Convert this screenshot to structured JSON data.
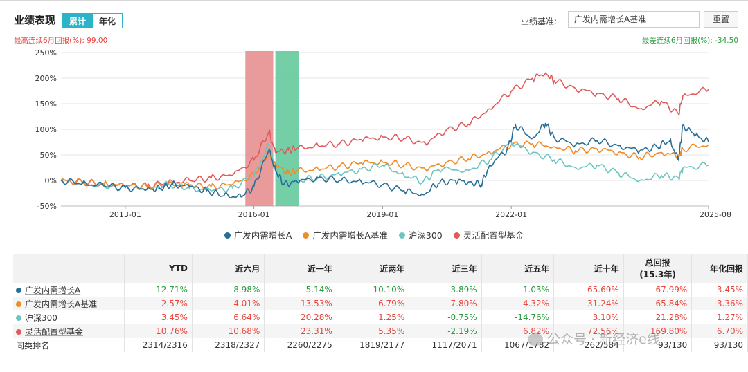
{
  "header": {
    "title": "业绩表现",
    "tabs": [
      {
        "label": "累计",
        "active": true
      },
      {
        "label": "年化",
        "active": false
      }
    ],
    "benchmark_label": "业绩基准:",
    "benchmark_value": "广发内需增长A基准",
    "reset_label": "重置"
  },
  "stats": {
    "max_label": "最高连续6月回报(%): 99.00",
    "min_label": "最差连续6月回报(%): -34.50"
  },
  "colors": {
    "fund": "#2a6e96",
    "benchmark": "#f08c28",
    "csi300": "#6cc5c0",
    "peer": "#e05a5a",
    "max_band": "#e58a8a",
    "min_band": "#5cc796",
    "positive": "#e8453c",
    "negative": "#2a9d3c"
  },
  "chart_data": {
    "type": "line",
    "x_ticks": [
      "2013-01",
      "2016-01",
      "2019-01",
      "2022-01",
      "2025-08"
    ],
    "ylim": [
      -50,
      250
    ],
    "y_ticks": [
      "250%",
      "200%",
      "150%",
      "100%",
      "50%",
      "0%",
      "-50%"
    ],
    "highlight_bands": [
      {
        "name": "max",
        "start": "2014.80",
        "end": "2015.45"
      },
      {
        "name": "min",
        "start": "2015.50",
        "end": "2016.05"
      }
    ],
    "series": [
      {
        "name": "广发内需增长A",
        "points": [
          [
            2010.5,
            0
          ],
          [
            2011.0,
            -6
          ],
          [
            2011.5,
            -10
          ],
          [
            2012.0,
            -14
          ],
          [
            2012.5,
            -18
          ],
          [
            2012.8,
            -16
          ],
          [
            2013.1,
            -8
          ],
          [
            2013.5,
            -12
          ],
          [
            2013.9,
            -20
          ],
          [
            2014.3,
            -30
          ],
          [
            2014.7,
            -32
          ],
          [
            2015.0,
            -12
          ],
          [
            2015.35,
            60
          ],
          [
            2015.5,
            20
          ],
          [
            2015.7,
            -8
          ],
          [
            2016.0,
            -2
          ],
          [
            2016.5,
            5
          ],
          [
            2017.0,
            0
          ],
          [
            2017.5,
            -2
          ],
          [
            2018.0,
            -8
          ],
          [
            2018.5,
            -20
          ],
          [
            2018.95,
            -28
          ],
          [
            2019.3,
            -5
          ],
          [
            2019.7,
            0
          ],
          [
            2020.0,
            -3
          ],
          [
            2020.3,
            -8
          ],
          [
            2020.5,
            30
          ],
          [
            2020.9,
            60
          ],
          [
            2021.1,
            108
          ],
          [
            2021.5,
            82
          ],
          [
            2021.8,
            112
          ],
          [
            2022.0,
            84
          ],
          [
            2022.5,
            70
          ],
          [
            2023.0,
            78
          ],
          [
            2023.5,
            68
          ],
          [
            2024.0,
            58
          ],
          [
            2024.4,
            66
          ],
          [
            2024.7,
            78
          ],
          [
            2024.9,
            40
          ],
          [
            2025.0,
            108
          ],
          [
            2025.3,
            88
          ],
          [
            2025.6,
            75
          ]
        ]
      },
      {
        "name": "广发内需增长A基准",
        "points": [
          [
            2010.5,
            0
          ],
          [
            2011.0,
            -3
          ],
          [
            2011.5,
            -7
          ],
          [
            2012.0,
            -10
          ],
          [
            2012.5,
            -12
          ],
          [
            2013.0,
            -8
          ],
          [
            2013.5,
            -10
          ],
          [
            2014.0,
            -12
          ],
          [
            2014.5,
            -8
          ],
          [
            2015.0,
            10
          ],
          [
            2015.35,
            55
          ],
          [
            2015.5,
            30
          ],
          [
            2015.8,
            15
          ],
          [
            2016.0,
            18
          ],
          [
            2016.5,
            22
          ],
          [
            2017.0,
            28
          ],
          [
            2017.5,
            34
          ],
          [
            2018.0,
            36
          ],
          [
            2018.5,
            30
          ],
          [
            2019.0,
            22
          ],
          [
            2019.5,
            36
          ],
          [
            2020.0,
            42
          ],
          [
            2020.5,
            55
          ],
          [
            2021.0,
            70
          ],
          [
            2021.5,
            72
          ],
          [
            2022.0,
            66
          ],
          [
            2022.5,
            58
          ],
          [
            2023.0,
            62
          ],
          [
            2023.5,
            55
          ],
          [
            2024.0,
            45
          ],
          [
            2024.5,
            55
          ],
          [
            2024.9,
            48
          ],
          [
            2025.0,
            62
          ],
          [
            2025.6,
            70
          ]
        ]
      },
      {
        "name": "沪深300",
        "points": [
          [
            2010.5,
            0
          ],
          [
            2011.0,
            -6
          ],
          [
            2011.5,
            -12
          ],
          [
            2012.0,
            -14
          ],
          [
            2012.5,
            -18
          ],
          [
            2013.0,
            -8
          ],
          [
            2013.5,
            -15
          ],
          [
            2014.0,
            -20
          ],
          [
            2014.5,
            -14
          ],
          [
            2015.0,
            8
          ],
          [
            2015.35,
            70
          ],
          [
            2015.5,
            20
          ],
          [
            2015.8,
            -5
          ],
          [
            2016.0,
            0
          ],
          [
            2016.5,
            5
          ],
          [
            2017.0,
            12
          ],
          [
            2017.5,
            22
          ],
          [
            2018.0,
            30
          ],
          [
            2018.5,
            10
          ],
          [
            2018.95,
            -2
          ],
          [
            2019.3,
            22
          ],
          [
            2020.0,
            20
          ],
          [
            2020.5,
            40
          ],
          [
            2021.0,
            75
          ],
          [
            2021.5,
            55
          ],
          [
            2022.0,
            40
          ],
          [
            2022.5,
            25
          ],
          [
            2023.0,
            30
          ],
          [
            2023.5,
            15
          ],
          [
            2024.0,
            0
          ],
          [
            2024.5,
            10
          ],
          [
            2024.9,
            5
          ],
          [
            2025.0,
            24
          ],
          [
            2025.6,
            30
          ]
        ]
      },
      {
        "name": "灵活配置型基金",
        "points": [
          [
            2010.5,
            0
          ],
          [
            2011.0,
            -4
          ],
          [
            2011.5,
            -8
          ],
          [
            2012.0,
            -10
          ],
          [
            2012.5,
            -10
          ],
          [
            2013.0,
            -5
          ],
          [
            2013.5,
            0
          ],
          [
            2014.0,
            5
          ],
          [
            2014.5,
            10
          ],
          [
            2015.0,
            40
          ],
          [
            2015.35,
            95
          ],
          [
            2015.5,
            55
          ],
          [
            2015.8,
            60
          ],
          [
            2016.0,
            62
          ],
          [
            2016.5,
            68
          ],
          [
            2017.0,
            72
          ],
          [
            2017.5,
            80
          ],
          [
            2018.0,
            85
          ],
          [
            2018.5,
            82
          ],
          [
            2019.0,
            72
          ],
          [
            2019.5,
            100
          ],
          [
            2020.0,
            110
          ],
          [
            2020.5,
            140
          ],
          [
            2021.0,
            175
          ],
          [
            2021.5,
            200
          ],
          [
            2021.8,
            210
          ],
          [
            2022.0,
            195
          ],
          [
            2022.5,
            180
          ],
          [
            2023.0,
            170
          ],
          [
            2023.5,
            160
          ],
          [
            2024.0,
            140
          ],
          [
            2024.5,
            155
          ],
          [
            2024.9,
            130
          ],
          [
            2025.0,
            165
          ],
          [
            2025.6,
            178
          ]
        ]
      }
    ]
  },
  "table": {
    "headers": [
      "",
      "YTD",
      "近六月",
      "近一年",
      "近两年",
      "近三年",
      "近五年",
      "近十年",
      "总回报\n(15.3年)",
      "年化回报"
    ],
    "rows": [
      {
        "name": "广发内需增长A",
        "cells": [
          "-12.71%",
          "-8.98%",
          "-5.14%",
          "-10.10%",
          "-3.89%",
          "-1.03%",
          "65.69%",
          "67.99%",
          "3.45%"
        ]
      },
      {
        "name": "广发内需增长A基准",
        "cells": [
          "2.57%",
          "4.01%",
          "13.53%",
          "6.79%",
          "7.80%",
          "4.32%",
          "31.24%",
          "65.84%",
          "3.36%"
        ]
      },
      {
        "name": "沪深300",
        "cells": [
          "3.45%",
          "6.64%",
          "20.28%",
          "1.25%",
          "-0.75%",
          "-14.76%",
          "3.10%",
          "21.28%",
          "1.27%"
        ]
      },
      {
        "name": "灵活配置型基金",
        "cells": [
          "10.76%",
          "10.68%",
          "23.31%",
          "5.35%",
          "-2.19%",
          "6.82%",
          "72.56%",
          "169.80%",
          "6.70%"
        ]
      },
      {
        "name": "同类排名",
        "cells": [
          "2314/2316",
          "2318/2327",
          "2260/2275",
          "1819/2177",
          "1117/2071",
          "1067/1782",
          "262/584",
          "93/130",
          "93/130"
        ]
      }
    ]
  },
  "watermark": "公众号 · 新经济e线"
}
